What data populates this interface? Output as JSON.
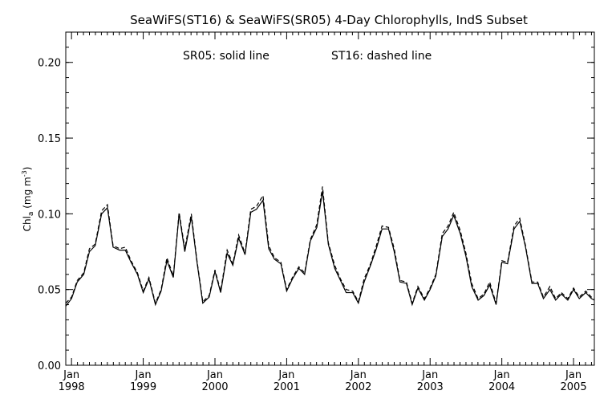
{
  "chart_data": {
    "type": "line",
    "title": "SeaWiFS(ST16) & SeaWiFS(SR05) 4-Day Chlorophylls, IndS Subset",
    "annotation_left": "SR05: solid line",
    "annotation_right": "ST16: dashed line",
    "ylabel": {
      "main": "Chl",
      "sub": "a",
      "unit_open": " (mg m",
      "unit_sup": "-3",
      "unit_close": ")"
    },
    "ylim": [
      0,
      0.22
    ],
    "yticks": [
      0.0,
      0.05,
      0.1,
      0.15,
      0.2
    ],
    "ytick_labels": [
      "0.00",
      "0.05",
      "0.10",
      "0.15",
      "0.20"
    ],
    "xlim": [
      1997.92,
      2005.29
    ],
    "xticks": [
      {
        "month": "Jan",
        "year": "1998",
        "x": 1998.0
      },
      {
        "month": "Jan",
        "year": "1999",
        "x": 1999.0
      },
      {
        "month": "Jan",
        "year": "2000",
        "x": 2000.0
      },
      {
        "month": "Jan",
        "year": "2001",
        "x": 2001.0
      },
      {
        "month": "Jan",
        "year": "2002",
        "x": 2002.0
      },
      {
        "month": "Jan",
        "year": "2003",
        "x": 2003.0
      },
      {
        "month": "Jan",
        "year": "2004",
        "x": 2004.0
      },
      {
        "month": "Jan",
        "year": "2005",
        "x": 2005.0
      }
    ],
    "grid": false,
    "series": [
      {
        "name": "SR05",
        "style": "solid",
        "color": "#000000",
        "x": [
          1997.92,
          1998.0,
          1998.08,
          1998.17,
          1998.25,
          1998.33,
          1998.42,
          1998.5,
          1998.58,
          1998.67,
          1998.75,
          1998.83,
          1998.92,
          1999.0,
          1999.08,
          1999.17,
          1999.25,
          1999.33,
          1999.42,
          1999.5,
          1999.58,
          1999.67,
          1999.75,
          1999.83,
          1999.92,
          2000.0,
          2000.08,
          2000.17,
          2000.25,
          2000.33,
          2000.42,
          2000.5,
          2000.58,
          2000.67,
          2000.75,
          2000.83,
          2000.92,
          2001.0,
          2001.08,
          2001.17,
          2001.25,
          2001.33,
          2001.42,
          2001.5,
          2001.58,
          2001.67,
          2001.75,
          2001.83,
          2001.92,
          2002.0,
          2002.08,
          2002.17,
          2002.25,
          2002.33,
          2002.42,
          2002.5,
          2002.58,
          2002.67,
          2002.75,
          2002.83,
          2002.92,
          2003.0,
          2003.08,
          2003.17,
          2003.25,
          2003.33,
          2003.42,
          2003.5,
          2003.58,
          2003.67,
          2003.75,
          2003.83,
          2003.92,
          2004.0,
          2004.08,
          2004.17,
          2004.25,
          2004.33,
          2004.42,
          2004.5,
          2004.58,
          2004.67,
          2004.75,
          2004.83,
          2004.92,
          2005.0,
          2005.08,
          2005.17,
          2005.25,
          2005.29
        ],
        "values": [
          0.039,
          0.044,
          0.055,
          0.06,
          0.075,
          0.079,
          0.1,
          0.104,
          0.078,
          0.076,
          0.076,
          0.068,
          0.06,
          0.048,
          0.057,
          0.04,
          0.049,
          0.069,
          0.058,
          0.1,
          0.075,
          0.098,
          0.068,
          0.041,
          0.045,
          0.062,
          0.048,
          0.074,
          0.066,
          0.084,
          0.073,
          0.101,
          0.103,
          0.109,
          0.077,
          0.07,
          0.067,
          0.049,
          0.057,
          0.064,
          0.06,
          0.082,
          0.091,
          0.115,
          0.08,
          0.064,
          0.056,
          0.048,
          0.048,
          0.041,
          0.055,
          0.066,
          0.077,
          0.09,
          0.09,
          0.075,
          0.055,
          0.054,
          0.04,
          0.051,
          0.043,
          0.05,
          0.059,
          0.085,
          0.09,
          0.099,
          0.087,
          0.072,
          0.052,
          0.043,
          0.046,
          0.053,
          0.04,
          0.068,
          0.067,
          0.09,
          0.095,
          0.078,
          0.054,
          0.054,
          0.044,
          0.05,
          0.043,
          0.047,
          0.043,
          0.05,
          0.044,
          0.048,
          0.044,
          0.043
        ]
      },
      {
        "name": "ST16",
        "style": "dashed",
        "color": "#000000",
        "x": [
          1997.92,
          1998.0,
          1998.08,
          1998.17,
          1998.25,
          1998.33,
          1998.42,
          1998.5,
          1998.58,
          1998.67,
          1998.75,
          1998.83,
          1998.92,
          1999.0,
          1999.08,
          1999.17,
          1999.25,
          1999.33,
          1999.42,
          1999.5,
          1999.58,
          1999.67,
          1999.75,
          1999.83,
          1999.92,
          2000.0,
          2000.08,
          2000.17,
          2000.25,
          2000.33,
          2000.42,
          2000.5,
          2000.58,
          2000.67,
          2000.75,
          2000.83,
          2000.92,
          2001.0,
          2001.08,
          2001.17,
          2001.25,
          2001.33,
          2001.42,
          2001.5,
          2001.58,
          2001.67,
          2001.75,
          2001.83,
          2001.92,
          2002.0,
          2002.08,
          2002.17,
          2002.25,
          2002.33,
          2002.42,
          2002.5,
          2002.58,
          2002.67,
          2002.75,
          2002.83,
          2002.92,
          2003.0,
          2003.08,
          2003.17,
          2003.25,
          2003.33,
          2003.42,
          2003.5,
          2003.58,
          2003.67,
          2003.75,
          2003.83,
          2003.92,
          2004.0,
          2004.08,
          2004.17,
          2004.25,
          2004.33,
          2004.42,
          2004.5,
          2004.58,
          2004.67,
          2004.75,
          2004.83,
          2004.92,
          2005.0,
          2005.08,
          2005.17,
          2005.25,
          2005.29
        ],
        "values": [
          0.041,
          0.045,
          0.056,
          0.061,
          0.077,
          0.08,
          0.102,
          0.106,
          0.079,
          0.077,
          0.078,
          0.069,
          0.061,
          0.049,
          0.058,
          0.041,
          0.05,
          0.071,
          0.059,
          0.101,
          0.077,
          0.1,
          0.069,
          0.042,
          0.046,
          0.063,
          0.049,
          0.076,
          0.067,
          0.086,
          0.074,
          0.103,
          0.105,
          0.112,
          0.079,
          0.071,
          0.068,
          0.05,
          0.058,
          0.065,
          0.061,
          0.083,
          0.093,
          0.118,
          0.081,
          0.066,
          0.057,
          0.05,
          0.049,
          0.042,
          0.057,
          0.067,
          0.079,
          0.092,
          0.091,
          0.077,
          0.056,
          0.055,
          0.041,
          0.052,
          0.044,
          0.051,
          0.06,
          0.087,
          0.092,
          0.101,
          0.089,
          0.074,
          0.054,
          0.044,
          0.047,
          0.055,
          0.041,
          0.069,
          0.068,
          0.092,
          0.097,
          0.079,
          0.055,
          0.055,
          0.045,
          0.052,
          0.044,
          0.048,
          0.044,
          0.051,
          0.045,
          0.049,
          0.045,
          0.044
        ]
      }
    ]
  }
}
